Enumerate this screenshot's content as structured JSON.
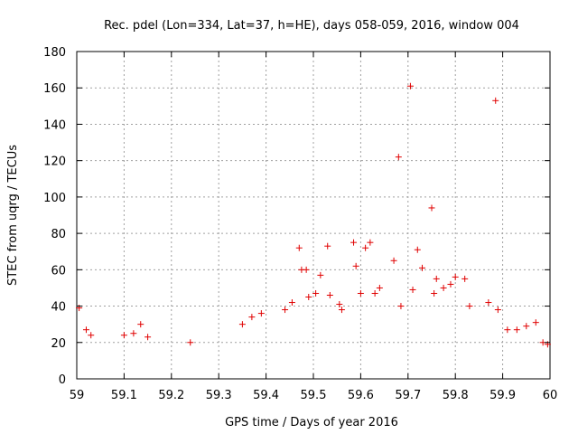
{
  "chart_data": {
    "type": "scatter",
    "title": "Rec. pdel (Lon=334, Lat=37, h=HE), days 058-059, 2016, window 004",
    "xlabel": "GPS time / Days of year 2016",
    "ylabel": "STEC from uqrg / TECUs",
    "xlim": [
      59,
      60
    ],
    "ylim": [
      0,
      180
    ],
    "xticks": [
      "59",
      "59.1",
      "59.2",
      "59.3",
      "59.4",
      "59.5",
      "59.6",
      "59.7",
      "59.8",
      "59.9",
      "60"
    ],
    "yticks": [
      "0",
      "20",
      "40",
      "60",
      "80",
      "100",
      "120",
      "140",
      "160",
      "180"
    ],
    "grid": true,
    "marker": "+",
    "color": "#e00000",
    "series": [
      {
        "name": "STEC",
        "points": [
          [
            59.005,
            39
          ],
          [
            59.02,
            27
          ],
          [
            59.03,
            24
          ],
          [
            59.1,
            24
          ],
          [
            59.12,
            25
          ],
          [
            59.135,
            30
          ],
          [
            59.15,
            23
          ],
          [
            59.24,
            20
          ],
          [
            59.35,
            30
          ],
          [
            59.37,
            34
          ],
          [
            59.39,
            36
          ],
          [
            59.44,
            38
          ],
          [
            59.455,
            42
          ],
          [
            59.47,
            72
          ],
          [
            59.475,
            60
          ],
          [
            59.485,
            60
          ],
          [
            59.49,
            45
          ],
          [
            59.505,
            47
          ],
          [
            59.515,
            57
          ],
          [
            59.53,
            73
          ],
          [
            59.535,
            46
          ],
          [
            59.555,
            41
          ],
          [
            59.56,
            38
          ],
          [
            59.585,
            75
          ],
          [
            59.59,
            62
          ],
          [
            59.6,
            47
          ],
          [
            59.61,
            72
          ],
          [
            59.62,
            75
          ],
          [
            59.63,
            47
          ],
          [
            59.64,
            50
          ],
          [
            59.67,
            65
          ],
          [
            59.68,
            122
          ],
          [
            59.685,
            40
          ],
          [
            59.705,
            161
          ],
          [
            59.71,
            49
          ],
          [
            59.72,
            71
          ],
          [
            59.73,
            61
          ],
          [
            59.75,
            94
          ],
          [
            59.755,
            47
          ],
          [
            59.76,
            55
          ],
          [
            59.775,
            50
          ],
          [
            59.79,
            52
          ],
          [
            59.8,
            56
          ],
          [
            59.82,
            55
          ],
          [
            59.83,
            40
          ],
          [
            59.87,
            42
          ],
          [
            59.885,
            153
          ],
          [
            59.89,
            38
          ],
          [
            59.91,
            27
          ],
          [
            59.93,
            27
          ],
          [
            59.95,
            29
          ],
          [
            59.97,
            31
          ],
          [
            59.985,
            20
          ],
          [
            59.995,
            19
          ]
        ]
      }
    ]
  }
}
